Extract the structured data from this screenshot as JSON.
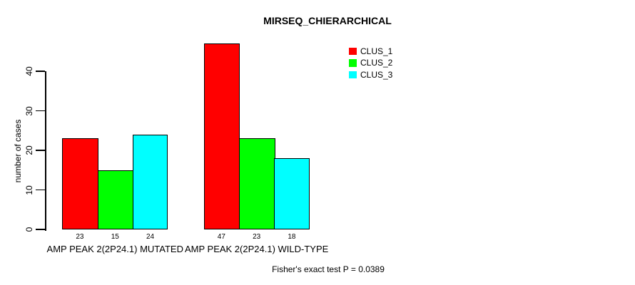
{
  "chart_data": {
    "type": "bar",
    "title": "MIRSEQ_CHIERARCHICAL",
    "ylabel": "number of cases",
    "xlabel": "",
    "categories": [
      "AMP PEAK 2(2P24.1) MUTATED",
      "AMP PEAK 2(2P24.1) WILD-TYPE"
    ],
    "series": [
      {
        "name": "CLUS_1",
        "color": "#FF0000",
        "values": [
          23,
          47
        ]
      },
      {
        "name": "CLUS_2",
        "color": "#00FF00",
        "values": [
          15,
          23
        ]
      },
      {
        "name": "CLUS_3",
        "color": "#00FFFF",
        "values": [
          24,
          18
        ]
      }
    ],
    "yticks": [
      0,
      10,
      20,
      30,
      40
    ],
    "ylim": [
      0,
      47
    ],
    "grid": false,
    "show_values_under_bars": true,
    "legend_position": "top-right",
    "annotation": "Fisher's exact test P = 0.0389"
  }
}
